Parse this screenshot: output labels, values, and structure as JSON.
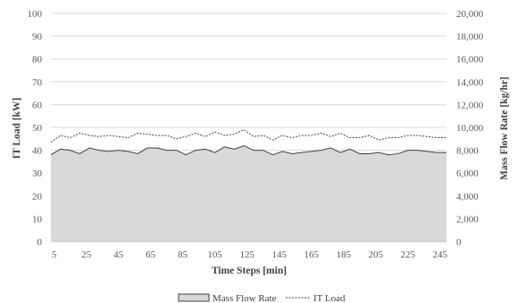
{
  "chart_data": {
    "type": "line",
    "xlabel": "Time Steps [min]",
    "ylabel_left": "IT Load [kW]",
    "ylabel_right": "Mass Flow Rate [kg/hr]",
    "xlim": [
      3,
      249
    ],
    "ylim_left": [
      0,
      100
    ],
    "ylim_right": [
      0,
      20000
    ],
    "x_tick_labels": [
      "5",
      "25",
      "45",
      "65",
      "85",
      "105",
      "125",
      "145",
      "165",
      "185",
      "205",
      "225",
      "245"
    ],
    "y_left_tick_labels": [
      "0",
      "10",
      "20",
      "30",
      "40",
      "50",
      "60",
      "70",
      "80",
      "90",
      "100"
    ],
    "y_right_tick_labels": [
      "0",
      "2,000",
      "4,000",
      "6,000",
      "8,000",
      "10,000",
      "12,000",
      "14,000",
      "16,000",
      "18,000",
      "20,000"
    ],
    "grid": "horizontal",
    "legend_position": "bottom",
    "series": [
      {
        "name": "Mass Flow Rate",
        "axis": "right",
        "style": "area",
        "fill": "#d9d9d9",
        "stroke": "#404040",
        "x": [
          3,
          9,
          15,
          21,
          27,
          33,
          39,
          45,
          51,
          57,
          63,
          69,
          75,
          81,
          87,
          93,
          99,
          105,
          111,
          117,
          123,
          129,
          135,
          141,
          147,
          153,
          159,
          165,
          171,
          177,
          183,
          189,
          195,
          201,
          207,
          213,
          219,
          225,
          231,
          237,
          243,
          249
        ],
        "values": [
          7600,
          8100,
          8000,
          7700,
          8200,
          8000,
          7900,
          8000,
          7900,
          7700,
          8200,
          8200,
          8000,
          8000,
          7600,
          8000,
          8100,
          7800,
          8300,
          8100,
          8400,
          8000,
          8000,
          7600,
          7900,
          7700,
          7800,
          7900,
          8000,
          8200,
          7800,
          8100,
          7700,
          7700,
          7800,
          7600,
          7700,
          8000,
          8000,
          7900,
          7800,
          7800
        ]
      },
      {
        "name": "IT Load",
        "axis": "left",
        "style": "dashed-line",
        "stroke": "#404040",
        "x": [
          3,
          9,
          15,
          21,
          27,
          33,
          39,
          45,
          51,
          57,
          63,
          69,
          75,
          81,
          87,
          93,
          99,
          105,
          111,
          117,
          123,
          129,
          135,
          141,
          147,
          153,
          159,
          165,
          171,
          177,
          183,
          189,
          195,
          201,
          207,
          213,
          219,
          225,
          231,
          237,
          243,
          249
        ],
        "values": [
          43.5,
          46.5,
          45.5,
          47.5,
          46.5,
          46,
          46.5,
          46,
          45.5,
          47.5,
          47,
          46.5,
          46.5,
          45,
          46,
          47.5,
          46,
          48,
          46.5,
          47,
          49,
          46,
          46.5,
          44.5,
          46.5,
          45.5,
          46.5,
          46.5,
          47.5,
          46,
          47.5,
          45.5,
          45.5,
          46.5,
          44.5,
          45.5,
          45.5,
          46.5,
          46.5,
          46,
          45.5,
          45.5
        ]
      }
    ]
  }
}
